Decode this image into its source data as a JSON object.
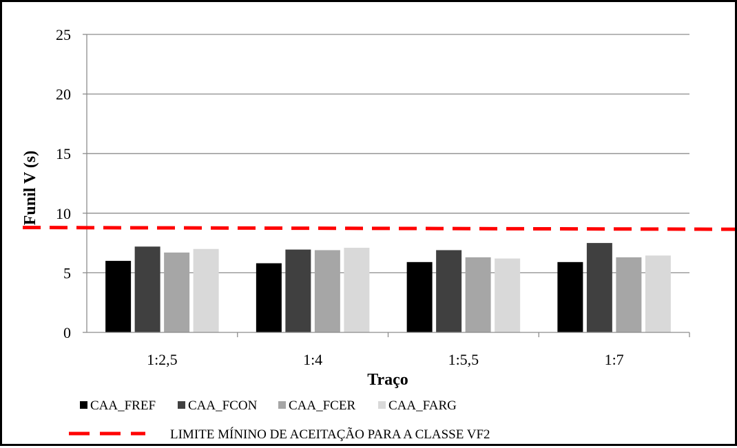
{
  "chart_data": {
    "type": "bar",
    "title": "",
    "xlabel": "Traço",
    "ylabel": "Funil V (s)",
    "ylim": [
      0,
      25
    ],
    "yticks": [
      "0",
      "5",
      "10",
      "15",
      "20",
      "25"
    ],
    "grid": true,
    "legend_position": "bottom",
    "categories": [
      "1:2,5",
      "1:4",
      "1:5,5",
      "1:7"
    ],
    "series": [
      {
        "name": "CAA_FREF",
        "color": "#000000",
        "values": [
          6.0,
          5.8,
          5.9,
          5.9
        ]
      },
      {
        "name": "CAA_FCON",
        "color": "#404040",
        "values": [
          7.2,
          6.95,
          6.9,
          7.5
        ]
      },
      {
        "name": "CAA_FCER",
        "color": "#a6a6a6",
        "values": [
          6.7,
          6.9,
          6.3,
          6.3
        ]
      },
      {
        "name": "CAA_FARG",
        "color": "#d9d9d9",
        "values": [
          7.0,
          7.1,
          6.2,
          6.45
        ]
      }
    ],
    "reference_line": {
      "name": "LIMITE MÍNINO DE ACEITAÇÃO PARA A CLASSE VF2",
      "color": "#ff0000",
      "style": "dashed",
      "y_start": 8.8,
      "y_end": 8.65
    }
  }
}
